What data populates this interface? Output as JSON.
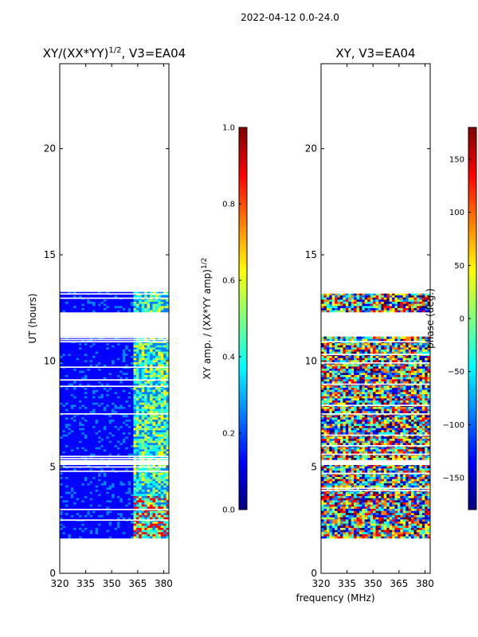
{
  "suptitle": "2022-04-12 0.0-24.0",
  "xlabel": "frequency (MHz)",
  "chart_data": [
    {
      "type": "heatmap",
      "title_prefix": "XY/(XX*YY)",
      "title_exponent": "1/2",
      "title_suffix": ", V3=EA04",
      "xlabel": "frequency (MHz)",
      "ylabel": "UT (hours)",
      "xlim": [
        320,
        383
      ],
      "ylim": [
        0,
        24
      ],
      "xticks": [
        "320",
        "335",
        "350",
        "365",
        "380"
      ],
      "yticks": [
        "0",
        "5",
        "10",
        "15",
        "20"
      ],
      "data_time_ranges_hours": [
        [
          1.65,
          5.1
        ],
        [
          5.35,
          11.15
        ],
        [
          12.3,
          13.25
        ]
      ],
      "colorbar": {
        "label_text": "XY amp. / (XX*YY amp)",
        "label_exponent": "1/2",
        "range": [
          0.0,
          1.0
        ],
        "ticks": [
          "0.0",
          "0.2",
          "0.4",
          "0.6",
          "0.8",
          "1.0"
        ],
        "colormap": "jet"
      }
    },
    {
      "type": "heatmap",
      "title": "XY, V3=EA04",
      "xlabel": "frequency (MHz)",
      "ylabel": "",
      "xlim": [
        320,
        383
      ],
      "ylim": [
        0,
        24
      ],
      "xticks": [
        "320",
        "335",
        "350",
        "365",
        "380"
      ],
      "yticks": [
        "0",
        "5",
        "10",
        "15",
        "20"
      ],
      "data_time_ranges_hours": [
        [
          1.65,
          5.1
        ],
        [
          5.35,
          11.15
        ],
        [
          12.3,
          13.25
        ]
      ],
      "colorbar": {
        "label_text": "phase (deg.)",
        "range": [
          -180,
          180
        ],
        "ticks": [
          "−150",
          "−100",
          "−50",
          "0",
          "50",
          "100",
          "150"
        ],
        "colormap": "jet"
      }
    }
  ],
  "colors": {
    "jet": [
      "#00007f",
      "#0000ff",
      "#007fff",
      "#00ffff",
      "#7fff7f",
      "#ffff00",
      "#ff7f00",
      "#ff0000",
      "#7f0000"
    ]
  }
}
